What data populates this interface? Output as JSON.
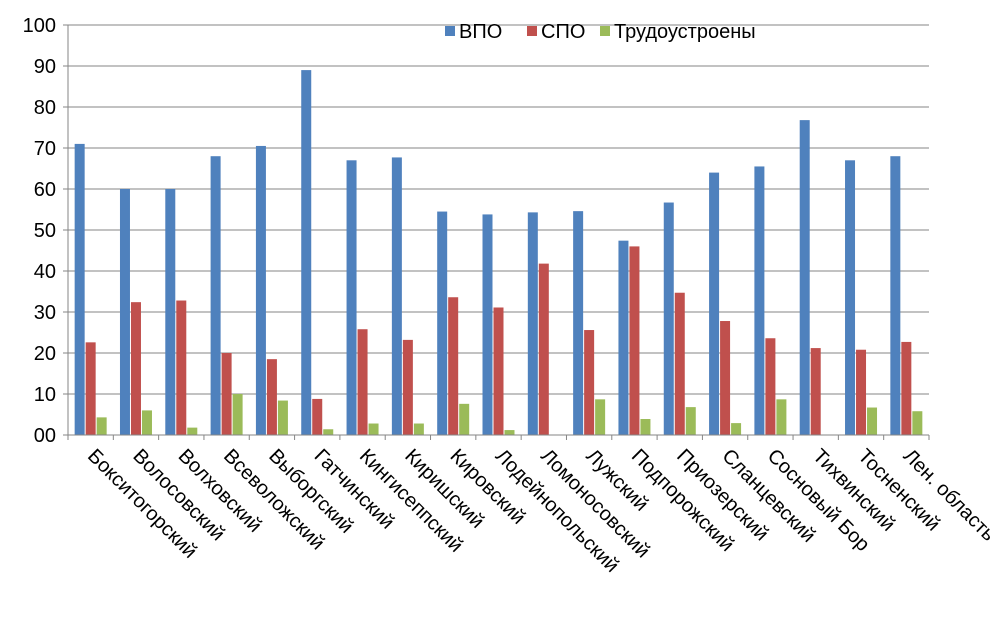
{
  "chart_data": {
    "type": "bar",
    "categories": [
      "Бокситогорский",
      "Волосовский",
      "Волховский",
      "Всеволожский",
      "Выборгский",
      "Гатчинский",
      "Кингисеппский",
      "Киришский",
      "Кировский",
      "Лодейнопольский",
      "Ломоносовский",
      "Лужский",
      "Подпорожский",
      "Приозерский",
      "Сланцевский",
      "Сосновый Бор",
      "Тихвинский",
      "Тосненский",
      "Лен. область"
    ],
    "series": [
      {
        "name": "ВПО",
        "color": "#4F81BD",
        "values": [
          71,
          60,
          60,
          68,
          70.5,
          89,
          67,
          67.7,
          54.5,
          53.8,
          54.3,
          54.6,
          47.4,
          56.7,
          64,
          65.5,
          76.8,
          67,
          68
        ]
      },
      {
        "name": "СПО",
        "color": "#C0504D",
        "values": [
          22.6,
          32.4,
          32.8,
          20,
          18.5,
          8.8,
          25.8,
          23.2,
          33.6,
          31.1,
          41.8,
          25.6,
          46,
          34.7,
          27.8,
          23.6,
          21.2,
          20.8,
          22.7
        ]
      },
      {
        "name": "Трудоустроены",
        "color": "#9BBB59",
        "values": [
          4.3,
          6,
          1.8,
          10,
          8.4,
          1.4,
          2.8,
          2.8,
          7.6,
          1.2,
          0,
          8.7,
          3.9,
          6.8,
          2.9,
          8.7,
          0,
          6.7,
          5.8
        ]
      }
    ],
    "y_ticks": [
      "00",
      "10",
      "20",
      "30",
      "40",
      "50",
      "60",
      "70",
      "80",
      "90",
      "100"
    ],
    "ylim": [
      0,
      100
    ],
    "grid": true,
    "legend_position": "top-right",
    "title": "",
    "xlabel": "",
    "ylabel": ""
  }
}
